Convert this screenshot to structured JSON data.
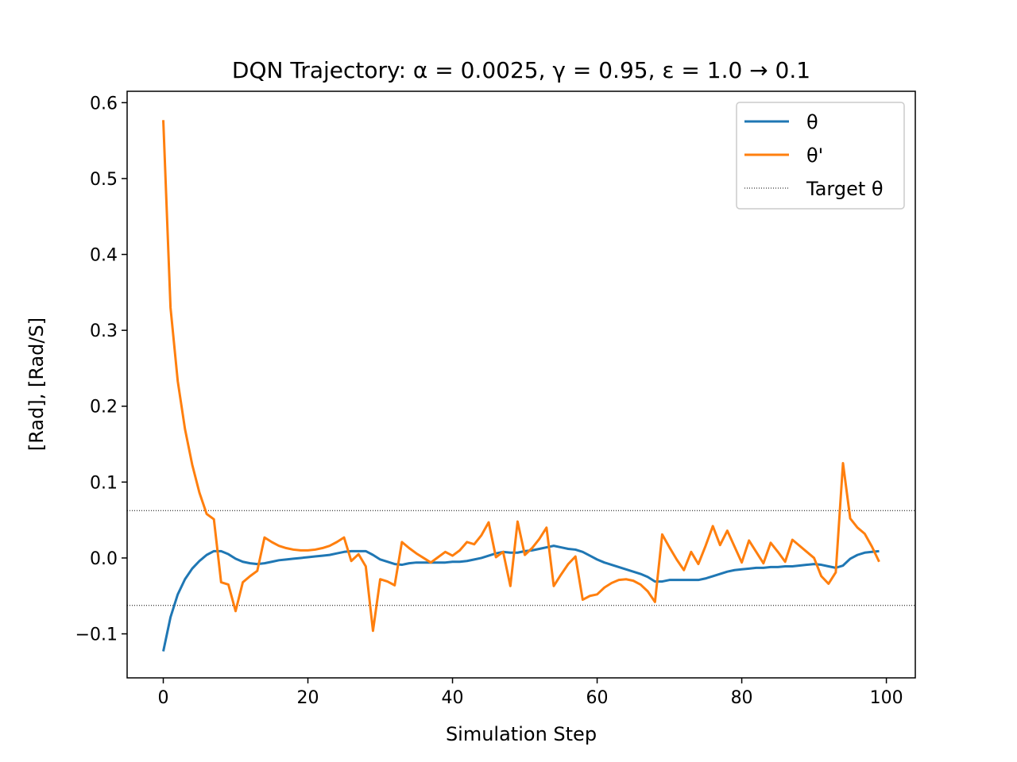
{
  "chart_data": {
    "type": "line",
    "title": "DQN Trajectory: α = 0.0025, γ = 0.95, ε = 1.0 → 0.1",
    "xlabel": "Simulation Step",
    "ylabel": "[Rad], [Rad/S]",
    "xlim": [
      -5,
      104
    ],
    "ylim": [
      -0.158,
      0.615
    ],
    "xticks": [
      0,
      20,
      40,
      60,
      80,
      100
    ],
    "xtick_labels": [
      "0",
      "20",
      "40",
      "60",
      "80",
      "100"
    ],
    "yticks": [
      -0.1,
      0.0,
      0.1,
      0.2,
      0.3,
      0.4,
      0.5,
      0.6
    ],
    "ytick_labels": [
      "−0.1",
      "0.0",
      "0.1",
      "0.2",
      "0.3",
      "0.4",
      "0.5",
      "0.6"
    ],
    "grid": false,
    "legend_position": "top-right",
    "target_lines": [
      0.0625,
      -0.0625
    ],
    "series": [
      {
        "name": "θ",
        "color": "#1f77b4",
        "style": "solid",
        "x": [
          0,
          1,
          2,
          3,
          4,
          5,
          6,
          7,
          8,
          9,
          10,
          11,
          12,
          13,
          14,
          15,
          16,
          17,
          18,
          19,
          20,
          21,
          22,
          23,
          24,
          25,
          26,
          27,
          28,
          29,
          30,
          31,
          32,
          33,
          34,
          35,
          36,
          37,
          38,
          39,
          40,
          41,
          42,
          43,
          44,
          45,
          46,
          47,
          48,
          49,
          50,
          51,
          52,
          53,
          54,
          55,
          56,
          57,
          58,
          59,
          60,
          61,
          62,
          63,
          64,
          65,
          66,
          67,
          68,
          69,
          70,
          71,
          72,
          73,
          74,
          75,
          76,
          77,
          78,
          79,
          80,
          81,
          82,
          83,
          84,
          85,
          86,
          87,
          88,
          89,
          90,
          91,
          92,
          93,
          94,
          95,
          96,
          97,
          98,
          99
        ],
        "y": [
          -0.123,
          -0.078,
          -0.048,
          -0.028,
          -0.014,
          -0.004,
          0.004,
          0.009,
          0.009,
          0.005,
          -0.001,
          -0.005,
          -0.007,
          -0.008,
          -0.007,
          -0.005,
          -0.003,
          -0.002,
          -0.001,
          0.0,
          0.001,
          0.002,
          0.003,
          0.004,
          0.006,
          0.008,
          0.009,
          0.009,
          0.009,
          0.004,
          -0.002,
          -0.005,
          -0.008,
          -0.009,
          -0.007,
          -0.006,
          -0.006,
          -0.006,
          -0.006,
          -0.006,
          -0.005,
          -0.005,
          -0.004,
          -0.002,
          0.0,
          0.003,
          0.006,
          0.008,
          0.007,
          0.007,
          0.009,
          0.01,
          0.012,
          0.014,
          0.016,
          0.014,
          0.012,
          0.011,
          0.008,
          0.003,
          -0.002,
          -0.006,
          -0.009,
          -0.012,
          -0.015,
          -0.018,
          -0.021,
          -0.025,
          -0.031,
          -0.031,
          -0.029,
          -0.029,
          -0.029,
          -0.029,
          -0.029,
          -0.027,
          -0.024,
          -0.021,
          -0.018,
          -0.016,
          -0.015,
          -0.014,
          -0.013,
          -0.013,
          -0.012,
          -0.012,
          -0.011,
          -0.011,
          -0.01,
          -0.009,
          -0.008,
          -0.009,
          -0.011,
          -0.013,
          -0.01,
          -0.001,
          0.004,
          0.007,
          0.008,
          0.009
        ]
      },
      {
        "name": "θ'",
        "color": "#ff7f0e",
        "style": "solid",
        "x": [
          0,
          1,
          2,
          3,
          4,
          5,
          6,
          7,
          8,
          9,
          10,
          11,
          12,
          13,
          14,
          15,
          16,
          17,
          18,
          19,
          20,
          21,
          22,
          23,
          24,
          25,
          26,
          27,
          28,
          29,
          30,
          31,
          32,
          33,
          34,
          35,
          36,
          37,
          38,
          39,
          40,
          41,
          42,
          43,
          44,
          45,
          46,
          47,
          48,
          49,
          50,
          51,
          52,
          53,
          54,
          55,
          56,
          57,
          58,
          59,
          60,
          61,
          62,
          63,
          64,
          65,
          66,
          67,
          68,
          69,
          70,
          71,
          72,
          73,
          74,
          75,
          76,
          77,
          78,
          79,
          80,
          81,
          82,
          83,
          84,
          85,
          86,
          87,
          88,
          89,
          90,
          91,
          92,
          93,
          94,
          95,
          96,
          97,
          98,
          99
        ],
        "y": [
          0.577,
          0.33,
          0.233,
          0.17,
          0.123,
          0.086,
          0.058,
          0.051,
          -0.032,
          -0.035,
          -0.07,
          -0.032,
          -0.024,
          -0.017,
          0.027,
          0.021,
          0.016,
          0.013,
          0.011,
          0.01,
          0.01,
          0.011,
          0.013,
          0.016,
          0.021,
          0.027,
          -0.004,
          0.005,
          -0.011,
          -0.096,
          -0.028,
          -0.031,
          -0.036,
          0.021,
          0.013,
          0.006,
          0.0,
          -0.006,
          0.001,
          0.008,
          0.003,
          0.01,
          0.021,
          0.018,
          0.03,
          0.047,
          0.001,
          0.008,
          -0.037,
          0.048,
          0.004,
          0.013,
          0.025,
          0.04,
          -0.037,
          -0.022,
          -0.008,
          0.002,
          -0.055,
          -0.05,
          -0.048,
          -0.039,
          -0.033,
          -0.029,
          -0.028,
          -0.03,
          -0.035,
          -0.044,
          -0.058,
          0.031,
          0.014,
          -0.002,
          -0.016,
          0.008,
          -0.008,
          0.016,
          0.042,
          0.017,
          0.036,
          0.015,
          -0.006,
          0.023,
          0.008,
          -0.007,
          0.02,
          0.008,
          -0.005,
          0.024,
          0.016,
          0.008,
          0.0,
          -0.024,
          -0.034,
          -0.019,
          0.125,
          0.052,
          0.04,
          0.032,
          0.015,
          -0.005
        ]
      },
      {
        "name": "Target θ",
        "color": "#000000",
        "style": "dotted"
      }
    ]
  }
}
